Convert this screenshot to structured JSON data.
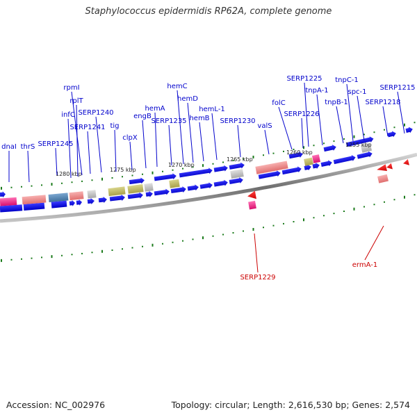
{
  "title": "Staphylococcus epidermidis RP62A, complete genome",
  "footer": {
    "accession": "Accession: NC_002976",
    "summary": "Topology: circular; Length: 2,616,530 bp; Genes: 2,574"
  },
  "colors": {
    "backbone": "#8c8c8c",
    "forward_label": "#0000cc",
    "reverse_label": "#cc0000",
    "tick": "#1a7a1a",
    "cds": "#0000ee"
  },
  "scale": [
    "1280 kbp",
    "1275 kbp",
    "1270 kbp",
    "1265 kbp",
    "1260 kbp",
    "1255 kbp"
  ],
  "forward_genes": [
    "dnaI",
    "thrS",
    "SERP1245",
    "infC",
    "rplT",
    "rpmI",
    "SERP1241",
    "SERP1240",
    "tig",
    "clpX",
    "engB",
    "hemA",
    "SERP1235",
    "hemC",
    "hemD",
    "hemB",
    "hemL-1",
    "SERP1230",
    "valS",
    "folC",
    "SERP1226",
    "SERP1225",
    "tnpA-1",
    "tnpB-1",
    "tnpC-1",
    "spc-1",
    "SERP1218",
    "SERP1215"
  ],
  "reverse_genes": [
    "SERP1229",
    "ermA-1"
  ]
}
